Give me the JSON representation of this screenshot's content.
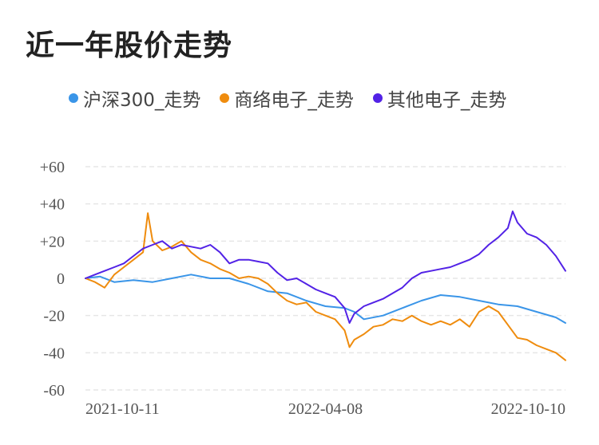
{
  "page": {
    "title": "近一年股价走势"
  },
  "colors": {
    "csi300": "#3a95e8",
    "shangluo": "#ef8c0e",
    "qita": "#5222e6",
    "grid": "#e6e6e6"
  },
  "chart_data": {
    "type": "line",
    "title": "近一年股价走势",
    "xlabel": "",
    "ylabel": "",
    "ylim": [
      -60,
      60
    ],
    "yticks": [
      60,
      40,
      20,
      0,
      -20,
      -40,
      -60
    ],
    "ytick_labels": [
      "+60",
      "+40",
      "+20",
      "0",
      "-20",
      "-40",
      "-60"
    ],
    "xtick_labels": [
      "2021-10-11",
      "2022-04-08",
      "2022-10-10"
    ],
    "grid": true,
    "legend_position": "top",
    "x_range": [
      0,
      100
    ],
    "series": [
      {
        "name": "沪深300_走势",
        "color": "#3a95e8",
        "x": [
          0,
          3,
          6,
          10,
          14,
          18,
          22,
          26,
          30,
          34,
          38,
          42,
          46,
          50,
          54,
          56,
          58,
          62,
          66,
          70,
          74,
          78,
          82,
          86,
          90,
          94,
          98,
          100
        ],
        "y": [
          0,
          1,
          -2,
          -1,
          -2,
          0,
          2,
          0,
          0,
          -3,
          -7,
          -8,
          -12,
          -15,
          -16,
          -18,
          -22,
          -20,
          -16,
          -12,
          -9,
          -10,
          -12,
          -14,
          -15,
          -18,
          -21,
          -24
        ]
      },
      {
        "name": "商络电子_走势",
        "color": "#ef8c0e",
        "x": [
          0,
          2,
          4,
          6,
          8,
          10,
          12,
          13,
          14,
          16,
          18,
          20,
          22,
          24,
          26,
          28,
          30,
          32,
          34,
          36,
          38,
          40,
          42,
          44,
          46,
          48,
          50,
          52,
          54,
          55,
          56,
          58,
          60,
          62,
          64,
          66,
          68,
          70,
          72,
          74,
          76,
          78,
          80,
          82,
          84,
          86,
          88,
          90,
          92,
          94,
          96,
          98,
          100
        ],
        "y": [
          0,
          -2,
          -5,
          2,
          6,
          10,
          14,
          35,
          20,
          15,
          17,
          20,
          14,
          10,
          8,
          5,
          3,
          0,
          1,
          0,
          -3,
          -8,
          -12,
          -14,
          -13,
          -18,
          -20,
          -22,
          -28,
          -37,
          -33,
          -30,
          -26,
          -25,
          -22,
          -23,
          -20,
          -23,
          -25,
          -23,
          -25,
          -22,
          -26,
          -18,
          -15,
          -18,
          -25,
          -32,
          -33,
          -36,
          -38,
          -40,
          -44
        ]
      },
      {
        "name": "其他电子_走势",
        "color": "#5222e6",
        "x": [
          0,
          2,
          4,
          6,
          8,
          10,
          12,
          14,
          16,
          18,
          20,
          22,
          24,
          26,
          28,
          30,
          32,
          34,
          36,
          38,
          40,
          42,
          44,
          46,
          48,
          50,
          52,
          54,
          55,
          56,
          58,
          60,
          62,
          64,
          66,
          68,
          70,
          72,
          74,
          76,
          78,
          80,
          82,
          84,
          86,
          88,
          89,
          90,
          92,
          94,
          96,
          98,
          100
        ],
        "y": [
          0,
          2,
          4,
          6,
          8,
          12,
          16,
          18,
          20,
          16,
          18,
          17,
          16,
          18,
          14,
          8,
          10,
          10,
          9,
          8,
          3,
          -1,
          0,
          -3,
          -6,
          -8,
          -10,
          -16,
          -24,
          -19,
          -15,
          -13,
          -11,
          -8,
          -5,
          0,
          3,
          4,
          5,
          6,
          8,
          10,
          13,
          18,
          22,
          27,
          36,
          30,
          24,
          22,
          18,
          12,
          4
        ]
      }
    ]
  }
}
